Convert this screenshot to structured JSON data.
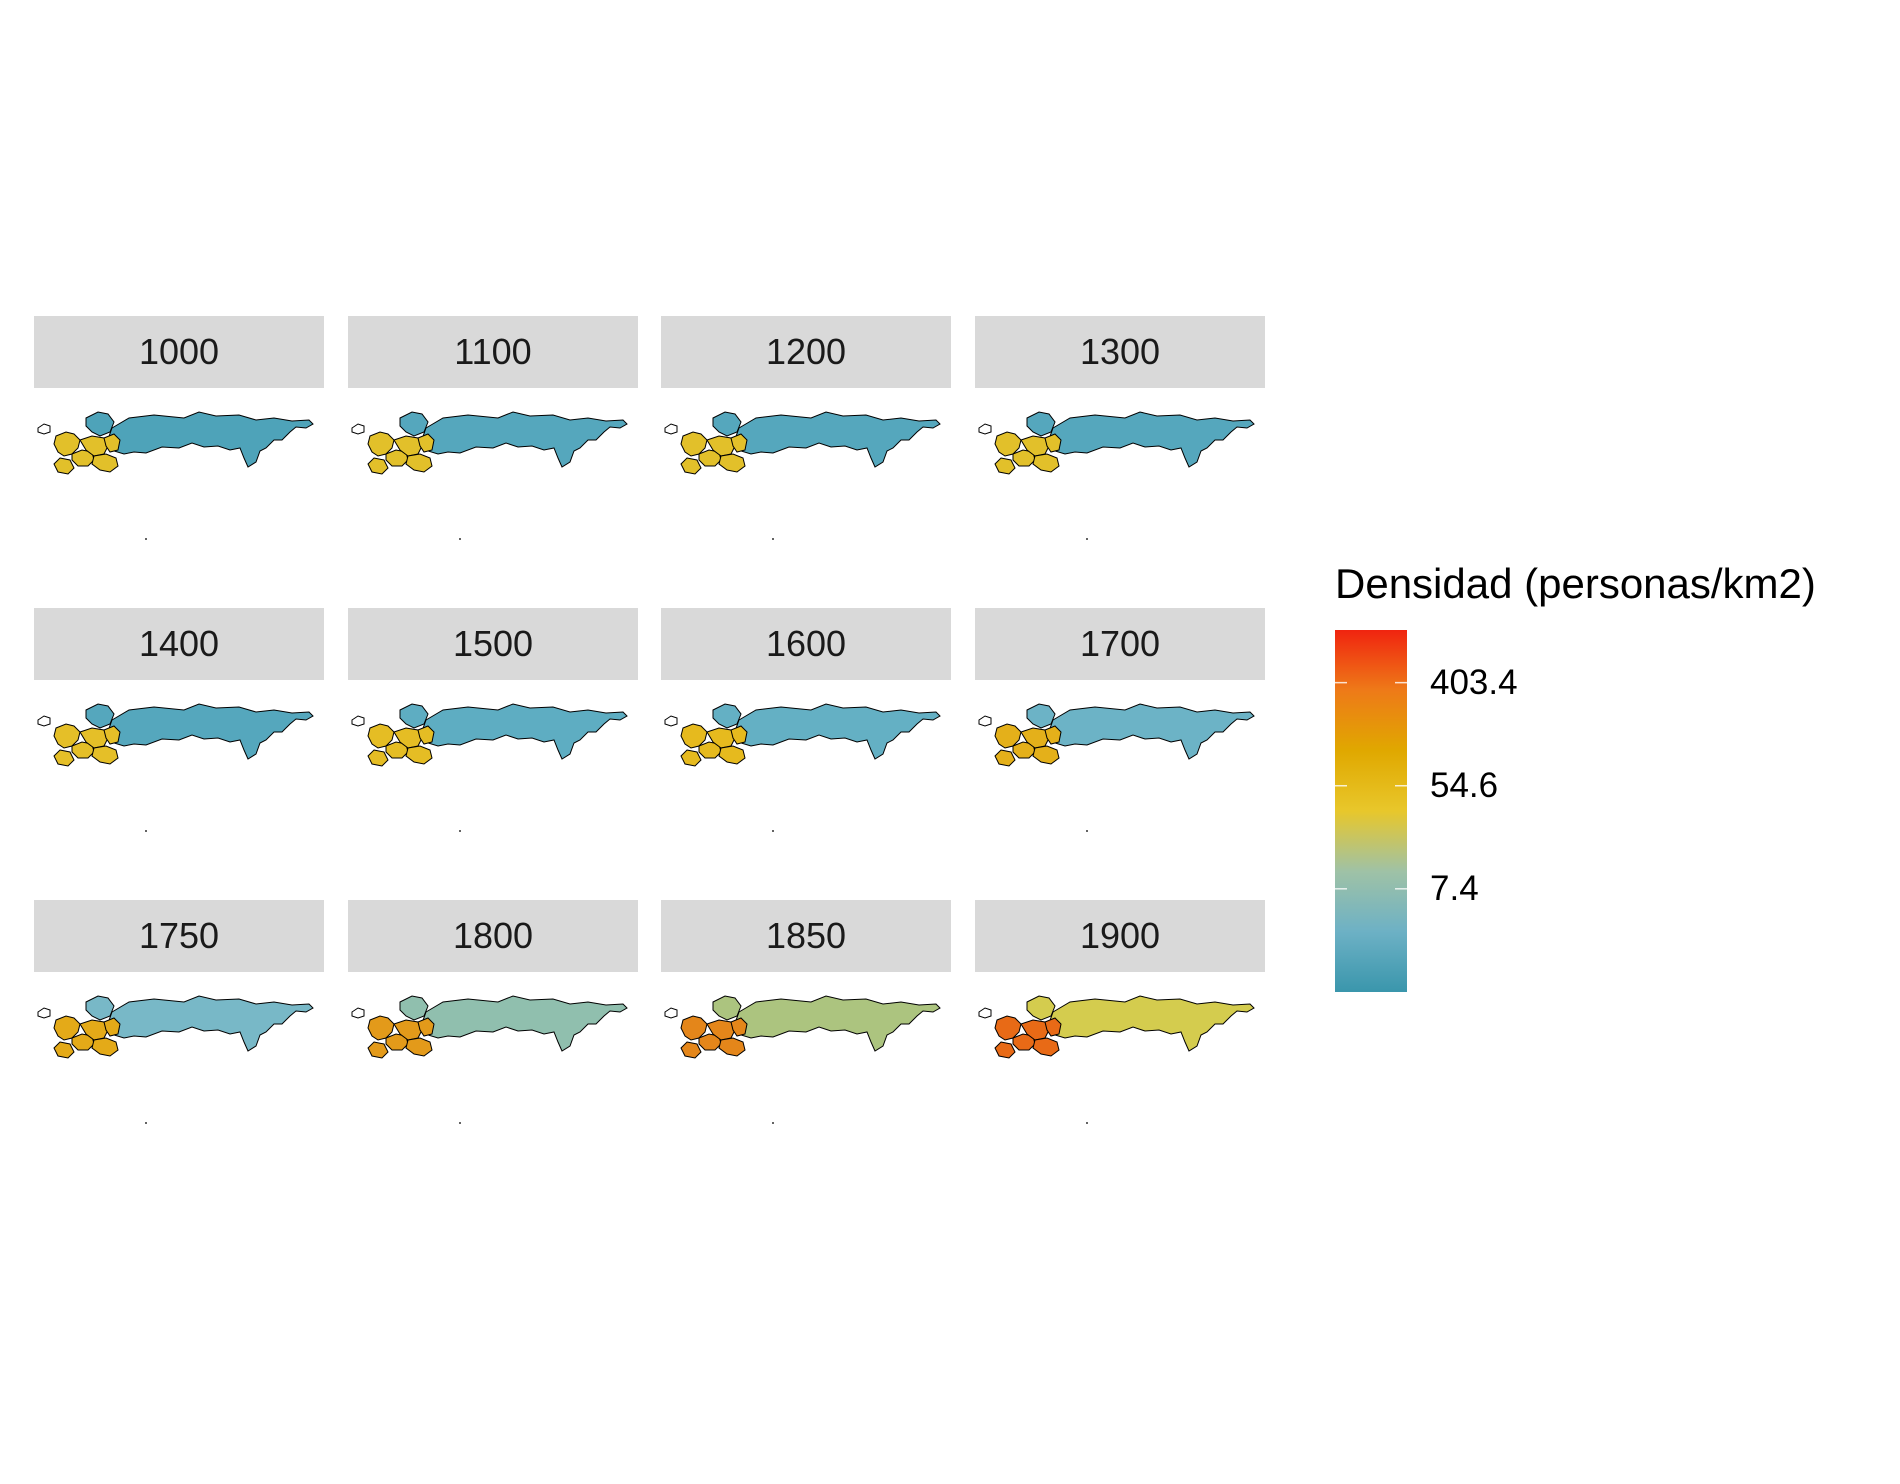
{
  "legend": {
    "title": "Densidad (personas/km2)",
    "ticks": [
      {
        "label": "403.4",
        "value": 403.4
      },
      {
        "label": "54.6",
        "value": 54.6
      },
      {
        "label": "7.4",
        "value": 7.4
      }
    ],
    "colors": [
      "#3a96ac",
      "#6db1c5",
      "#9fc2a6",
      "#e8c72b",
      "#e0a800",
      "#ee7a18",
      "#f0240f"
    ]
  },
  "panels": [
    {
      "year": "1000",
      "russia_color": "#4ea3b9",
      "europe_color": "#e2c02a"
    },
    {
      "year": "1100",
      "russia_color": "#55a7bd",
      "europe_color": "#e2c02a"
    },
    {
      "year": "1200",
      "russia_color": "#55a7bd",
      "europe_color": "#e2c02a"
    },
    {
      "year": "1300",
      "russia_color": "#55a7bd",
      "europe_color": "#e2c02a"
    },
    {
      "year": "1400",
      "russia_color": "#55a7bd",
      "europe_color": "#e5bf28"
    },
    {
      "year": "1500",
      "russia_color": "#5eadc2",
      "europe_color": "#e5bd24"
    },
    {
      "year": "1600",
      "russia_color": "#64b0c4",
      "europe_color": "#e6ba1e"
    },
    {
      "year": "1700",
      "russia_color": "#6cb3c6",
      "europe_color": "#e4b01a"
    },
    {
      "year": "1750",
      "russia_color": "#78b8c7",
      "europe_color": "#e4aa18"
    },
    {
      "year": "1800",
      "russia_color": "#90bfae",
      "europe_color": "#e39a1a"
    },
    {
      "year": "1850",
      "russia_color": "#acc47f",
      "europe_color": "#e4861a"
    },
    {
      "year": "1900",
      "russia_color": "#d4cc4e",
      "europe_color": "#e86a16"
    }
  ]
}
